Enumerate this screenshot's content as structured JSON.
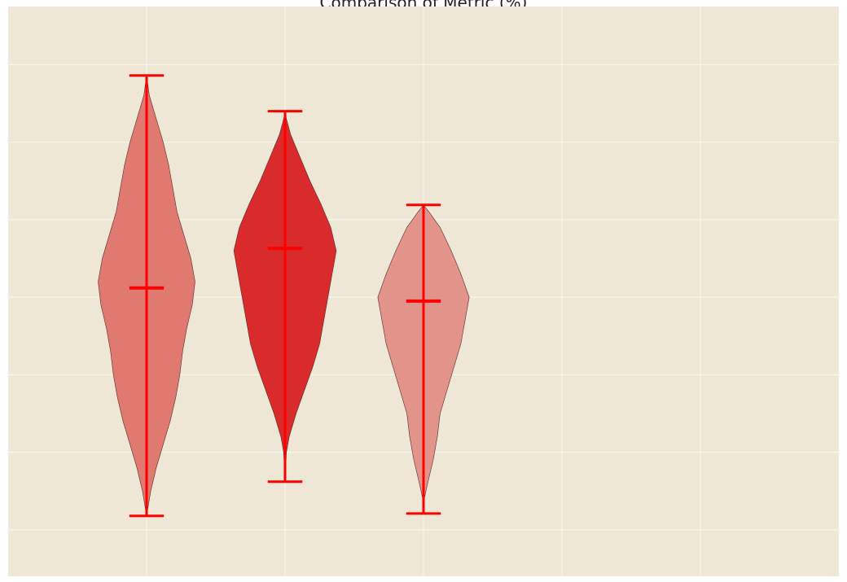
{
  "chart_data": {
    "type": "violin",
    "title": "Comparison of Metric (%)",
    "xlabel": "",
    "ylabel": "",
    "grid": true,
    "x_positions": [
      1,
      2,
      3
    ],
    "xlim": [
      0.0,
      6.0
    ],
    "ylim": [
      4.0,
      77.5
    ],
    "series": [
      {
        "position": 1,
        "min": 11.8,
        "max": 68.6,
        "median": 41.2,
        "shape": [
          [
            11.8,
            0.0
          ],
          [
            15,
            0.03
          ],
          [
            18,
            0.07
          ],
          [
            21,
            0.12
          ],
          [
            24,
            0.17
          ],
          [
            27,
            0.21
          ],
          [
            30,
            0.24
          ],
          [
            33,
            0.26
          ],
          [
            36,
            0.29
          ],
          [
            39,
            0.33
          ],
          [
            42,
            0.35
          ],
          [
            45,
            0.32
          ],
          [
            48,
            0.27
          ],
          [
            51,
            0.22
          ],
          [
            54,
            0.19
          ],
          [
            57,
            0.16
          ],
          [
            60,
            0.12
          ],
          [
            63,
            0.07
          ],
          [
            66,
            0.02
          ],
          [
            68.6,
            0.0
          ]
        ]
      },
      {
        "position": 2,
        "min": 16.2,
        "max": 64.0,
        "median": 46.3,
        "shape": [
          [
            16.2,
            0.0
          ],
          [
            18,
            0.005
          ],
          [
            20,
            0.01
          ],
          [
            22,
            0.03
          ],
          [
            25,
            0.08
          ],
          [
            28,
            0.14
          ],
          [
            31,
            0.2
          ],
          [
            34,
            0.25
          ],
          [
            37,
            0.28
          ],
          [
            40,
            0.31
          ],
          [
            43,
            0.34
          ],
          [
            46,
            0.37
          ],
          [
            49,
            0.33
          ],
          [
            52,
            0.26
          ],
          [
            55,
            0.18
          ],
          [
            58,
            0.11
          ],
          [
            61,
            0.04
          ],
          [
            63,
            0.01
          ],
          [
            64,
            0.0
          ]
        ]
      },
      {
        "position": 3,
        "min": 12.1,
        "max": 51.9,
        "median": 39.5,
        "shape": [
          [
            12.1,
            0.0
          ],
          [
            14,
            0.005
          ],
          [
            16,
            0.03
          ],
          [
            19,
            0.07
          ],
          [
            22,
            0.1
          ],
          [
            25,
            0.12
          ],
          [
            28,
            0.17
          ],
          [
            31,
            0.22
          ],
          [
            34,
            0.27
          ],
          [
            37,
            0.3
          ],
          [
            40,
            0.33
          ],
          [
            43,
            0.27
          ],
          [
            46,
            0.2
          ],
          [
            49,
            0.12
          ],
          [
            51,
            0.04
          ],
          [
            51.9,
            0.0
          ]
        ]
      }
    ],
    "colors": {
      "background": "#EFE7D6",
      "grid": "#F8F4EA",
      "stats_lines": "#FF0000",
      "violins": [
        "#E0796F",
        "#D92B2B",
        "#E2948A"
      ],
      "outline": "#5A2A2A"
    }
  }
}
